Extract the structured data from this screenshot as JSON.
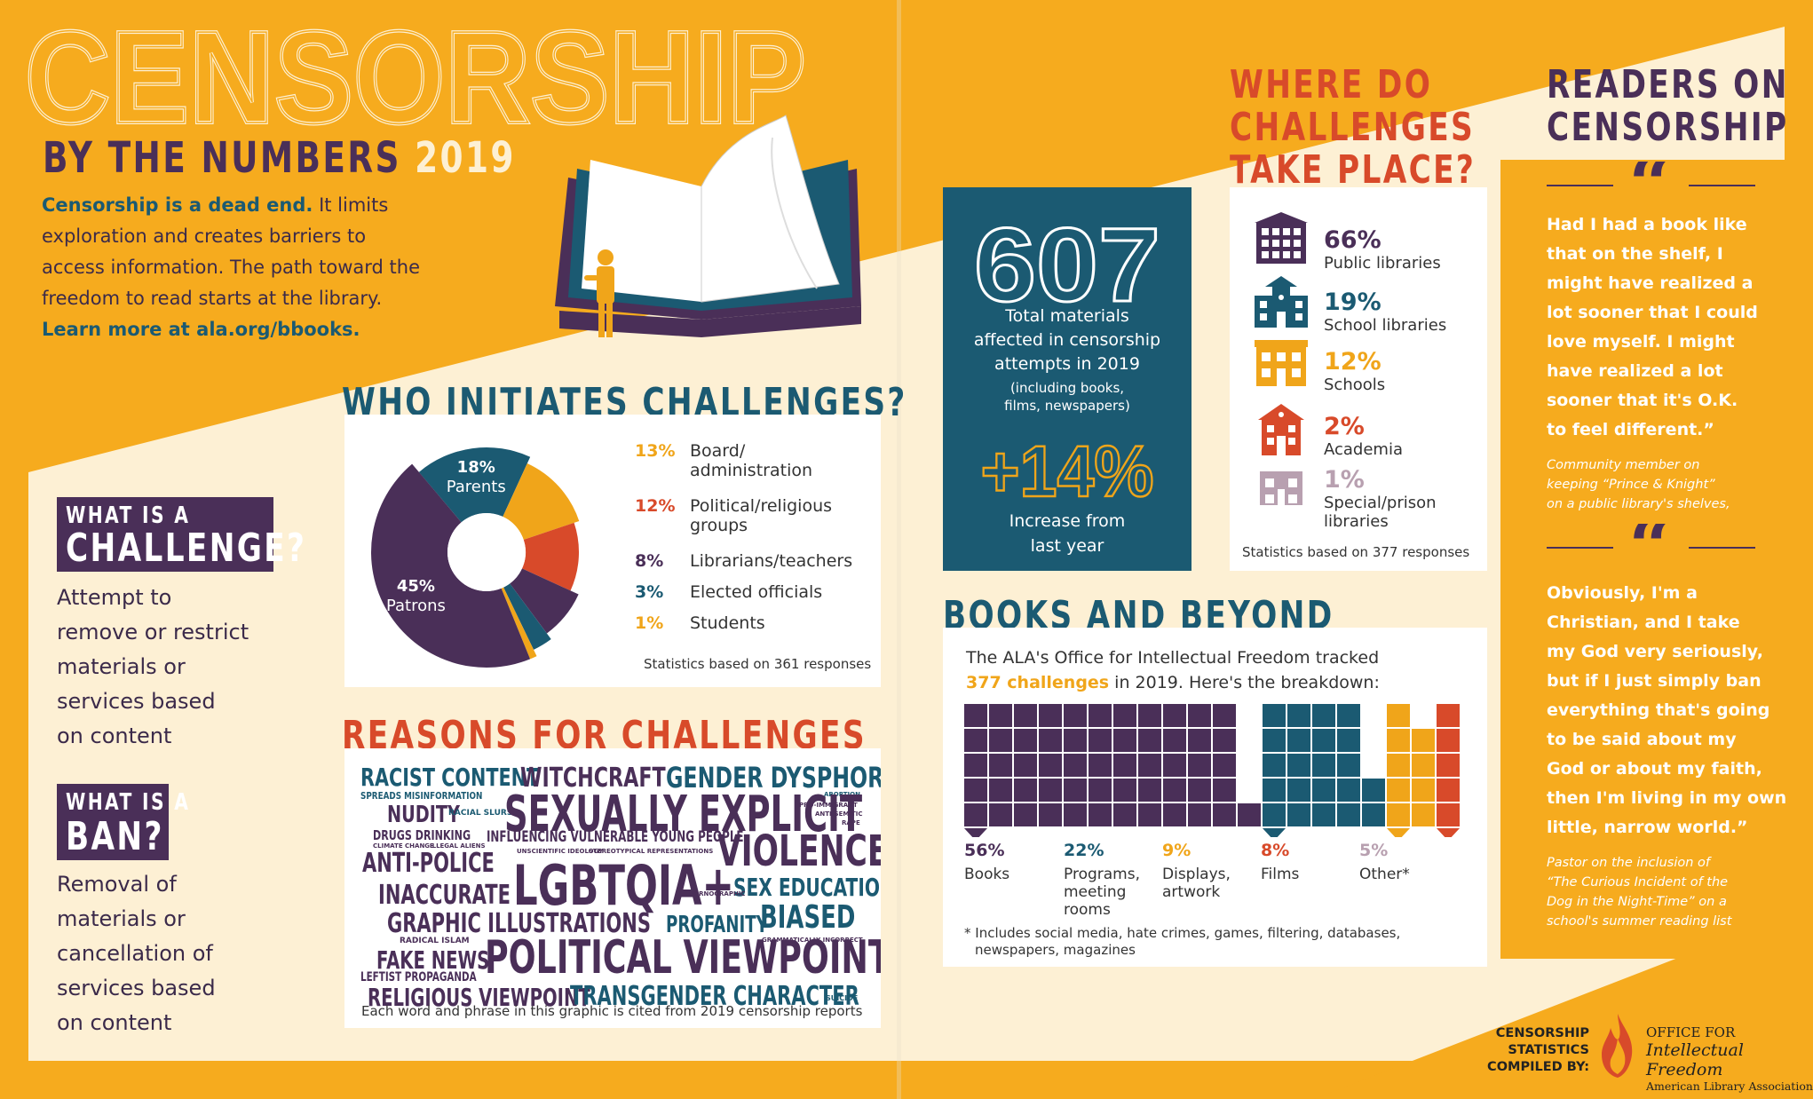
{
  "header": {
    "title": "CENSORSHIP",
    "subtitle_prefix": "BY THE NUMBERS",
    "year": "2019",
    "intro_bold": "Censorship is a dead end.",
    "intro_text_lines": [
      "It limits",
      "exploration and creates barriers to",
      "access information. The path toward the",
      "freedom to read starts at the library."
    ],
    "learn_more": "Learn more at ala.org/bbooks."
  },
  "colors": {
    "background": "#f6ab1e",
    "cream": "#fdf0d4",
    "teal": "#1b5a72",
    "purple": "#4a2f58",
    "orange": "#f0a51a",
    "red": "#d84a2a",
    "mauve": "#b8a0b0"
  },
  "definitions": {
    "challenge_label_1": "WHAT IS A",
    "challenge_label_2": "CHALLENGE?",
    "challenge_lines": [
      "Attempt to",
      "remove or restrict",
      "materials or",
      "services based",
      "on content"
    ],
    "ban_label_1": "WHAT IS A",
    "ban_label_2": "BAN?",
    "ban_lines": [
      "Removal of",
      "materials or",
      "cancellation of",
      "services based",
      "on content"
    ]
  },
  "who_initiates": {
    "heading": "WHO INITIATES CHALLENGES?",
    "slices": [
      {
        "pct": "18%",
        "label": "Parents",
        "value": 18,
        "color": "#1b5a72"
      },
      {
        "pct": "13%",
        "label": "Board/ administration",
        "label_lines": [
          "Board/",
          "administration"
        ],
        "value": 13,
        "color": "#f0a51a"
      },
      {
        "pct": "12%",
        "label": "Political/religious groups",
        "label_lines": [
          "Political/religious",
          "groups"
        ],
        "value": 12,
        "color": "#d84a2a"
      },
      {
        "pct": "8%",
        "label": "Librarians/teachers",
        "label_lines": [
          "Librarians/teachers"
        ],
        "value": 8,
        "color": "#4a2f58"
      },
      {
        "pct": "3%",
        "label": "Elected officials",
        "label_lines": [
          "Elected officials"
        ],
        "value": 3,
        "color": "#1b5a72"
      },
      {
        "pct": "1%",
        "label": "Students",
        "label_lines": [
          "Students"
        ],
        "value": 1,
        "color": "#f0a51a"
      },
      {
        "pct": "45%",
        "label": "Patrons",
        "value": 45,
        "color": "#4a2f58"
      }
    ],
    "footnote": "Statistics based on 361 responses"
  },
  "reasons": {
    "heading": "REASONS FOR CHALLENGES",
    "footnote": "Each word and phrase in this graphic is cited from 2019 censorship reports",
    "words": {
      "racist": "RACIST CONTENT",
      "witchcraft": "WITCHCRAFT",
      "gender": "GENDER DYSPHORIA",
      "spreads": "SPREADS MISINFORMATION",
      "nudity": "NUDITY",
      "racial": "RACIAL SLURS",
      "sexually": "SEXUALLY EXPLICIT",
      "proimmigrant": "PRO-IMMIGRANT",
      "antisemitic": "ANTI-SEMITIC",
      "rape": "RAPE",
      "abortion": "ABORTION",
      "drugs": "DRUGS DRINKING",
      "climate": "CLIMATE CHANGE",
      "illegal": "ILLEGAL ALIENS",
      "influencing": "INFLUENCING VULNERABLE YOUNG PEOPLE",
      "violence": "VIOLENCE",
      "antipolice": "ANTI-POLICE",
      "unscientific": "UNSCIENTIFIC IDEOLOGY",
      "stereotypical": "STEREOTYPICAL REPRESENTATIONS",
      "lgbtqia": "LGBTQIA+",
      "inaccurate": "INACCURATE",
      "sexed": "SEX EDUCATION",
      "pornographic": "PORNOGRAPHIC",
      "biased": "BIASED",
      "graphic": "GRAPHIC ILLUSTRATIONS",
      "profanity": "PROFANITY",
      "grammatically": "GRAMMATICALLY INCORRECT",
      "radical": "RADICAL ISLAM",
      "fakenews": "FAKE NEWS",
      "political": "POLITICAL VIEWPOINT",
      "leftist": "LEFTIST PROPAGANDA",
      "religious": "RELIGIOUS VIEWPOINT",
      "transgender": "TRANSGENDER CHARACTER",
      "suicide": "SUICIDE"
    }
  },
  "materials": {
    "number": "607",
    "label_lines": [
      "Total materials",
      "affected in censorship",
      "attempts in 2019"
    ],
    "note_lines": [
      "(including books,",
      "films, newspapers)"
    ],
    "increase": "+14%",
    "increase_lines": [
      "Increase from",
      "last year"
    ]
  },
  "where": {
    "heading_lines": [
      "WHERE DO",
      "CHALLENGES",
      "TAKE PLACE?"
    ],
    "places": [
      {
        "pct": "66%",
        "label_lines": [
          "Public libraries"
        ],
        "color": "#4a2f58",
        "icon": "public-library-icon"
      },
      {
        "pct": "19%",
        "label_lines": [
          "School libraries"
        ],
        "color": "#1b5a72",
        "icon": "school-library-icon"
      },
      {
        "pct": "12%",
        "label_lines": [
          "Schools"
        ],
        "color": "#f0a51a",
        "icon": "school-icon"
      },
      {
        "pct": "2%",
        "label_lines": [
          "Academia"
        ],
        "color": "#d84a2a",
        "icon": "academia-icon"
      },
      {
        "pct": "1%",
        "label_lines": [
          "Special/prison",
          "libraries"
        ],
        "color": "#b8a0b0",
        "icon": "prison-library-icon"
      }
    ],
    "footnote": "Statistics based on 377 responses"
  },
  "books_beyond": {
    "heading": "BOOKS AND BEYOND",
    "intro_line1": "The ALA's Office for Intellectual Freedom tracked",
    "intro_highlight": "377 challenges",
    "intro_line2_rest": "in 2019. Here's the breakdown:",
    "categories": [
      {
        "pct": "56%",
        "label_lines": [
          "Books"
        ],
        "value": 56,
        "color": "#4a2f58"
      },
      {
        "pct": "22%",
        "label_lines": [
          "Programs,",
          "meeting",
          "rooms"
        ],
        "value": 22,
        "color": "#1b5a72"
      },
      {
        "pct": "9%",
        "label_lines": [
          "Displays,",
          "artwork"
        ],
        "value": 9,
        "color": "#f0a51a"
      },
      {
        "pct": "8%",
        "label_lines": [
          "Films"
        ],
        "value": 8,
        "color": "#d84a2a"
      },
      {
        "pct": "5%",
        "label_lines": [
          "Other*"
        ],
        "value": 5,
        "color": "#b8a0b0"
      }
    ],
    "footnote_lines": [
      "* Includes social media, hate crimes, games, filtering, databases,",
      "newspapers, magazines"
    ]
  },
  "readers": {
    "heading_lines": [
      "READERS ON",
      "CENSORSHIP"
    ],
    "quotes": [
      {
        "lines": [
          "Had I had a book like",
          "that on the shelf, I",
          "might have realized a",
          "lot sooner that I could",
          "love myself. I might",
          "have realized a lot",
          "sooner that it's O.K.",
          "to feel different.”"
        ],
        "attr_lines": [
          "Community member on",
          "keeping “Prince & Knight”",
          "on a public library's shelves,"
        ]
      },
      {
        "lines": [
          "Obviously, I'm a",
          "Christian, and I take",
          "my God very seriously,",
          "but if I just simply ban",
          "everything that's going",
          "to be said about my",
          "God or about my faith,",
          "then I'm living in my own",
          "little, narrow world.”"
        ],
        "attr_lines": [
          "Pastor on the inclusion of",
          "“The Curious Incident of the",
          "Dog in the Night-Time” on a",
          "school's summer reading list"
        ]
      }
    ]
  },
  "footer": {
    "compiled_lines": [
      "CENSORSHIP",
      "STATISTICS",
      "COMPILED BY:"
    ],
    "org_lines": [
      "OFFICE FOR",
      "Intellectual Freedom",
      "American Library Association"
    ]
  }
}
